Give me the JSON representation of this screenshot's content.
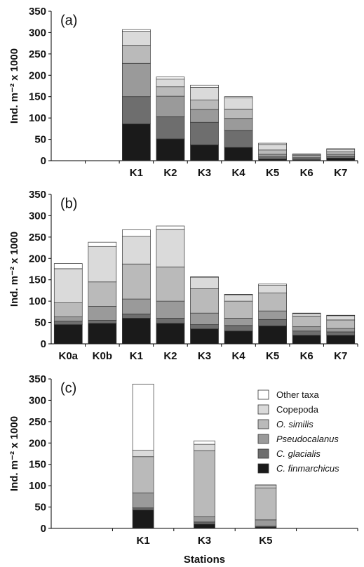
{
  "colors": {
    "C. finmarchicus": "#1a1a1a",
    "C. glacialis": "#6e6e6e",
    "Pseudocalanus": "#9a9a9a",
    "O. similis": "#bababa",
    "Copepoda": "#dadada",
    "Other taxa": "#ffffff"
  },
  "legend": {
    "position": "right of panel (c)",
    "entries": [
      {
        "name": "Other taxa",
        "italic": false
      },
      {
        "name": "Copepoda",
        "italic": false
      },
      {
        "name": "O. similis",
        "italic": true
      },
      {
        "name": "Pseudocalanus",
        "italic": true
      },
      {
        "name": "C. glacialis",
        "italic": true
      },
      {
        "name": "C. finmarchicus",
        "italic": true
      }
    ]
  },
  "chart_data": [
    {
      "type": "bar",
      "stacked": true,
      "panel_label": "(a)",
      "ylabel": "Ind. m⁻² x 1000",
      "xlabel": "",
      "ylim": [
        0,
        350
      ],
      "yticks": [
        0,
        50,
        100,
        150,
        200,
        250,
        300,
        350
      ],
      "categories": [
        "",
        "",
        "K1",
        "K2",
        "K3",
        "K4",
        "K5",
        "K6",
        "K7"
      ],
      "series": [
        {
          "name": "C. finmarchicus",
          "values": [
            0,
            0,
            86,
            51,
            37,
            31,
            4,
            2,
            6
          ]
        },
        {
          "name": "C. glacialis",
          "values": [
            0,
            0,
            64,
            52,
            53,
            40,
            5,
            3,
            4
          ]
        },
        {
          "name": "Pseudocalanus",
          "values": [
            0,
            0,
            78,
            48,
            30,
            28,
            6,
            3,
            5
          ]
        },
        {
          "name": "O. similis",
          "values": [
            0,
            0,
            42,
            22,
            22,
            22,
            10,
            4,
            6
          ]
        },
        {
          "name": "Copepoda",
          "values": [
            0,
            0,
            33,
            18,
            30,
            26,
            13,
            3,
            6
          ]
        },
        {
          "name": "Other taxa",
          "values": [
            0,
            0,
            4,
            5,
            5,
            3,
            3,
            1,
            1
          ]
        }
      ]
    },
    {
      "type": "bar",
      "stacked": true,
      "panel_label": "(b)",
      "ylabel": "Ind. m⁻² x 1000",
      "xlabel": "",
      "ylim": [
        0,
        350
      ],
      "yticks": [
        0,
        50,
        100,
        150,
        200,
        250,
        300,
        350
      ],
      "categories": [
        "K0a",
        "K0b",
        "K1",
        "K2",
        "K3",
        "K4",
        "K5",
        "K6",
        "K7"
      ],
      "series": [
        {
          "name": "C. finmarchicus",
          "values": [
            45,
            48,
            60,
            48,
            35,
            30,
            42,
            20,
            20
          ]
        },
        {
          "name": "C. glacialis",
          "values": [
            8,
            7,
            10,
            12,
            10,
            13,
            15,
            10,
            8
          ]
        },
        {
          "name": "Pseudocalanus",
          "values": [
            10,
            33,
            35,
            40,
            27,
            17,
            20,
            10,
            8
          ]
        },
        {
          "name": "O. similis",
          "values": [
            33,
            57,
            82,
            80,
            57,
            40,
            42,
            25,
            20
          ]
        },
        {
          "name": "Copepoda",
          "values": [
            80,
            83,
            65,
            88,
            27,
            15,
            18,
            6,
            10
          ]
        },
        {
          "name": "Other taxa",
          "values": [
            12,
            10,
            15,
            8,
            1,
            1,
            3,
            1,
            1
          ]
        }
      ]
    },
    {
      "type": "bar",
      "stacked": true,
      "panel_label": "(c)",
      "ylabel": "Ind. m⁻² x 1000",
      "xlabel": "Stations",
      "ylim": [
        0,
        350
      ],
      "yticks": [
        0,
        50,
        100,
        150,
        200,
        250,
        300,
        350
      ],
      "categories": [
        "",
        "K1",
        "K3",
        "K5",
        ""
      ],
      "series": [
        {
          "name": "C. finmarchicus",
          "values": [
            0,
            43,
            10,
            3,
            0
          ]
        },
        {
          "name": "C. glacialis",
          "values": [
            0,
            5,
            5,
            2,
            0
          ]
        },
        {
          "name": "Pseudocalanus",
          "values": [
            0,
            35,
            12,
            15,
            0
          ]
        },
        {
          "name": "O. similis",
          "values": [
            0,
            85,
            155,
            75,
            0
          ]
        },
        {
          "name": "Copepoda",
          "values": [
            0,
            15,
            15,
            5,
            0
          ]
        },
        {
          "name": "Other taxa",
          "values": [
            0,
            155,
            8,
            2,
            0
          ]
        }
      ]
    }
  ]
}
